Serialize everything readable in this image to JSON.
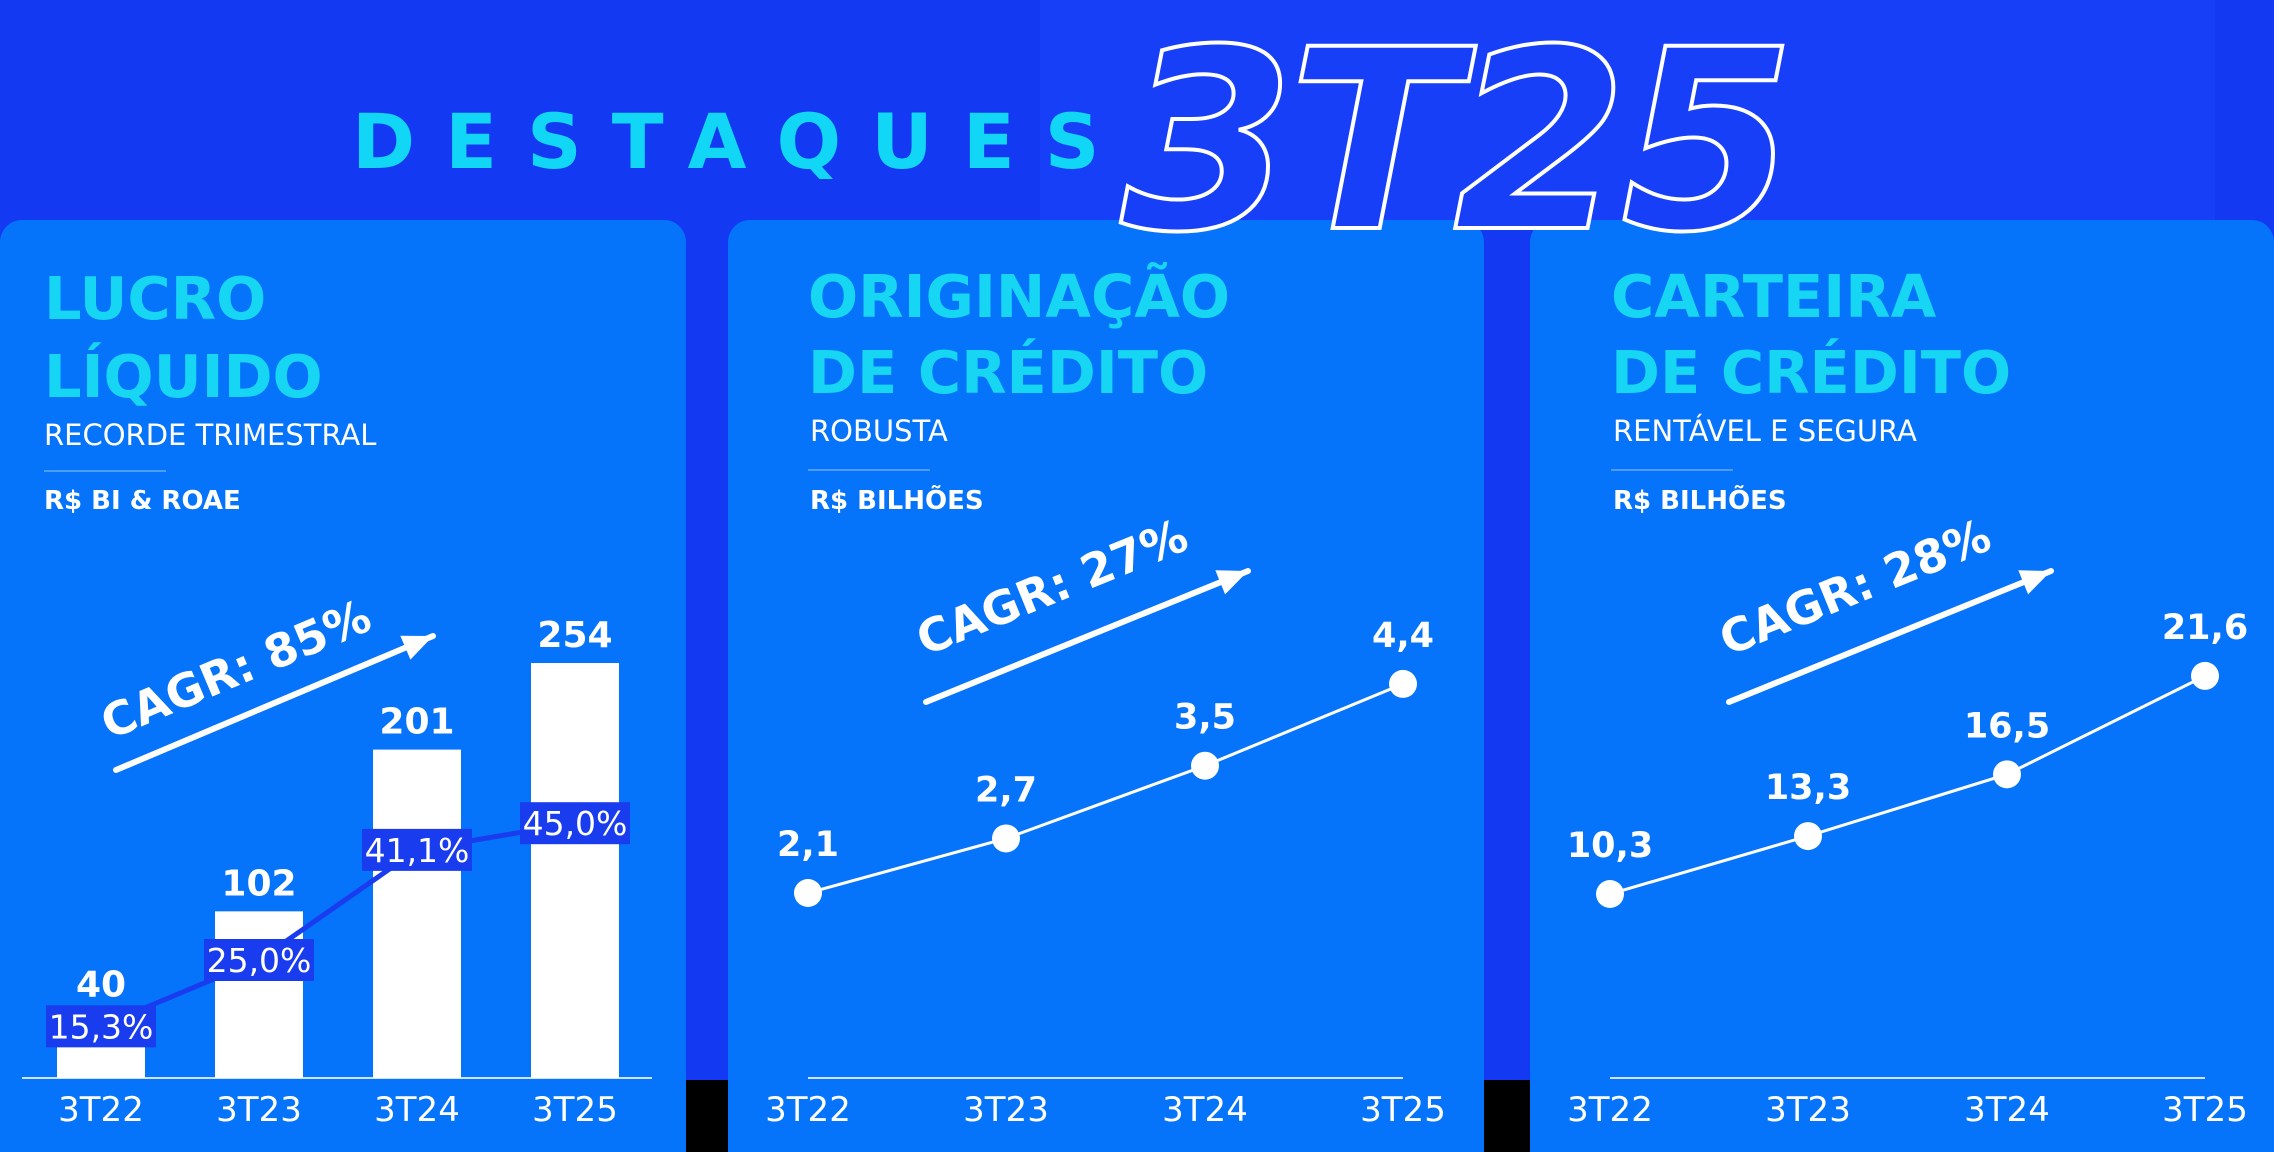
{
  "header": {
    "word": "DESTAQUES",
    "period": "3T25"
  },
  "colors": {
    "background": "#1339f2",
    "panel": "#0673fb",
    "accent_cyan": "#12d6f5",
    "roae_line": "#1a3cef",
    "white": "#ffffff"
  },
  "panels": [
    {
      "title_line1": "LUCRO",
      "title_line2": "LÍQUIDO",
      "subtitle": "RECORDE TRIMESTRAL",
      "unit": "R$ BI & ROAE"
    },
    {
      "title_line1": "ORIGINAÇÃO",
      "title_line2": "DE CRÉDITO",
      "subtitle": "ROBUSTA",
      "unit": "R$ BILHÕES"
    },
    {
      "title_line1": "CARTEIRA",
      "title_line2": "DE CRÉDITO",
      "subtitle": "RENTÁVEL E SEGURA",
      "unit": "R$ BILHÕES"
    }
  ],
  "chart_data": [
    {
      "type": "bar",
      "title": "LUCRO LÍQUIDO",
      "categories": [
        "3T22",
        "3T23",
        "3T24",
        "3T25"
      ],
      "series": [
        {
          "values": [
            40,
            102,
            201,
            254
          ],
          "labels": [
            "40",
            "102",
            "201",
            "254"
          ]
        },
        {
          "values": [
            15.3,
            25.0,
            41.1,
            45.0
          ],
          "labels": [
            "15,3%",
            "25,0%",
            "41,1%",
            "45,0%"
          ]
        }
      ],
      "annotation": "CAGR: 85%",
      "ylim": [
        0,
        254
      ]
    },
    {
      "type": "line",
      "title": "ORIGINAÇÃO DE CRÉDITO",
      "categories": [
        "3T22",
        "3T23",
        "3T24",
        "3T25"
      ],
      "values": [
        2.1,
        2.7,
        3.5,
        4.4
      ],
      "labels": [
        "2,1",
        "2,7",
        "3,5",
        "4,4"
      ],
      "annotation": "CAGR: 27%"
    },
    {
      "type": "line",
      "title": "CARTEIRA DE CRÉDITO",
      "categories": [
        "3T22",
        "3T23",
        "3T24",
        "3T25"
      ],
      "values": [
        10.3,
        13.3,
        16.5,
        21.6
      ],
      "labels": [
        "10,3",
        "13,3",
        "16,5",
        "21,6"
      ],
      "annotation": "CAGR: 28%"
    }
  ]
}
